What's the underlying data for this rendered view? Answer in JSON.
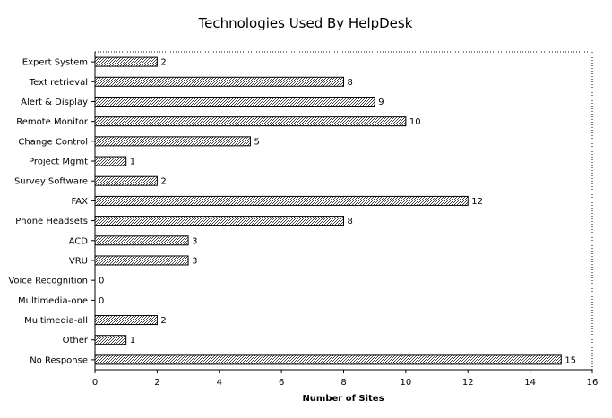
{
  "chart_data": {
    "type": "bar",
    "orientation": "horizontal",
    "title": "Technologies Used By HelpDesk",
    "xlabel": "Number of Sites",
    "ylabel": "",
    "categories": [
      "Expert System",
      "Text retrieval",
      "Alert & Display",
      "Remote Monitor",
      "Change Control",
      "Project Mgmt",
      "Survey Software",
      "FAX",
      "Phone Headsets",
      "ACD",
      "VRU",
      "Voice Recognition",
      "Multimedia-one",
      "Multimedia-all",
      "Other",
      "No Response"
    ],
    "values": [
      2,
      8,
      9,
      10,
      5,
      1,
      2,
      12,
      8,
      3,
      3,
      0,
      0,
      2,
      1,
      15
    ],
    "xlim": [
      0,
      16
    ],
    "xticks": [
      0,
      2,
      4,
      6,
      8,
      10,
      12,
      14,
      16
    ],
    "data_labels": true,
    "grid": false,
    "legend": "none",
    "bar_fill": "hatched gray",
    "bar_color": "#808080"
  }
}
